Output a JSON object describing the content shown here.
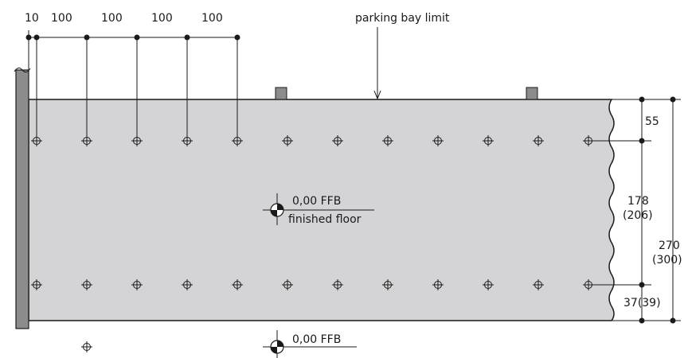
{
  "top_dimensions": {
    "first": "10",
    "spacings": [
      "100",
      "100",
      "100",
      "100"
    ]
  },
  "annotations": {
    "parking_bay_limit": "parking bay limit",
    "level_upper": "0,00 FFB",
    "level_upper_sub": "finished floor",
    "level_lower": "0,00 FFB"
  },
  "right_dimensions": {
    "top_offset": "55",
    "middle": "178",
    "middle_alt": "(206)",
    "bottom": "37(39)",
    "total": "270",
    "total_alt": "(300)"
  },
  "colors": {
    "floor": "#d4d4d6",
    "wall": "#8c8c8c",
    "stroke": "#1a1a1a"
  },
  "icons": {
    "anchor": "anchor-point-icon",
    "level": "level-marker-icon"
  }
}
